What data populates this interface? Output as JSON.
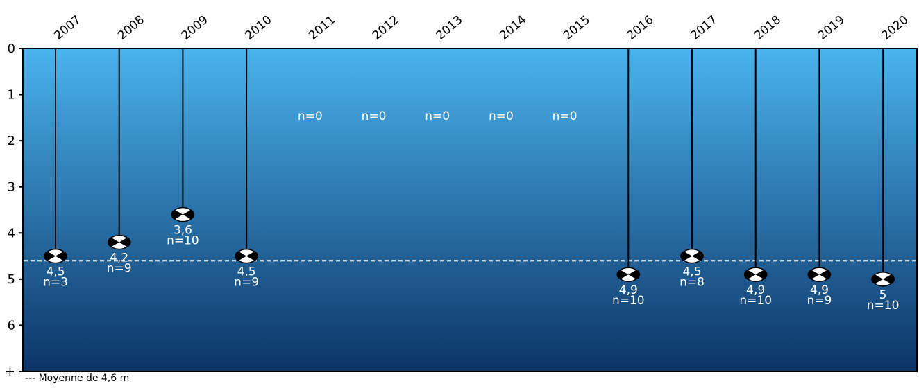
{
  "chart_data": {
    "type": "scatter",
    "title": "",
    "xlabel": "",
    "ylabel": "",
    "y_axis_inverted": true,
    "ylim": [
      0,
      7
    ],
    "y_tick_labels": [
      "0",
      "1",
      "2",
      "3",
      "4",
      "5",
      "6",
      "+"
    ],
    "categories": [
      "2007",
      "2008",
      "2009",
      "2010",
      "2011",
      "2012",
      "2013",
      "2014",
      "2015",
      "2016",
      "2017",
      "2018",
      "2019",
      "2020"
    ],
    "points": [
      {
        "year": "2007",
        "value": 4.5,
        "value_label": "4,5",
        "n_label": "n=3"
      },
      {
        "year": "2008",
        "value": 4.2,
        "value_label": "4,2",
        "n_label": "n=9"
      },
      {
        "year": "2009",
        "value": 3.6,
        "value_label": "3,6",
        "n_label": "n=10"
      },
      {
        "year": "2010",
        "value": 4.5,
        "value_label": "4,5",
        "n_label": "n=9"
      },
      {
        "year": "2011",
        "value": null,
        "value_label": "",
        "n_label": "n=0"
      },
      {
        "year": "2012",
        "value": null,
        "value_label": "",
        "n_label": "n=0"
      },
      {
        "year": "2013",
        "value": null,
        "value_label": "",
        "n_label": "n=0"
      },
      {
        "year": "2014",
        "value": null,
        "value_label": "",
        "n_label": "n=0"
      },
      {
        "year": "2015",
        "value": null,
        "value_label": "",
        "n_label": "n=0"
      },
      {
        "year": "2016",
        "value": 4.9,
        "value_label": "4,9",
        "n_label": "n=10"
      },
      {
        "year": "2017",
        "value": 4.5,
        "value_label": "4,5",
        "n_label": "n=8"
      },
      {
        "year": "2018",
        "value": 4.9,
        "value_label": "4,9",
        "n_label": "n=10"
      },
      {
        "year": "2019",
        "value": 4.9,
        "value_label": "4,9",
        "n_label": "n=9"
      },
      {
        "year": "2020",
        "value": 5.0,
        "value_label": "5",
        "n_label": "n=10"
      }
    ],
    "mean_value": 4.6,
    "legend_text": "--- Moyenne de 4,6 m",
    "colors": {
      "water_top": "#4ab3ee",
      "water_bottom": "#0c3466",
      "rope": "#000000",
      "disk_dark": "#000000",
      "disk_light": "#ffffff",
      "label": "#ffffff",
      "mean_line": "#ffffff"
    }
  }
}
